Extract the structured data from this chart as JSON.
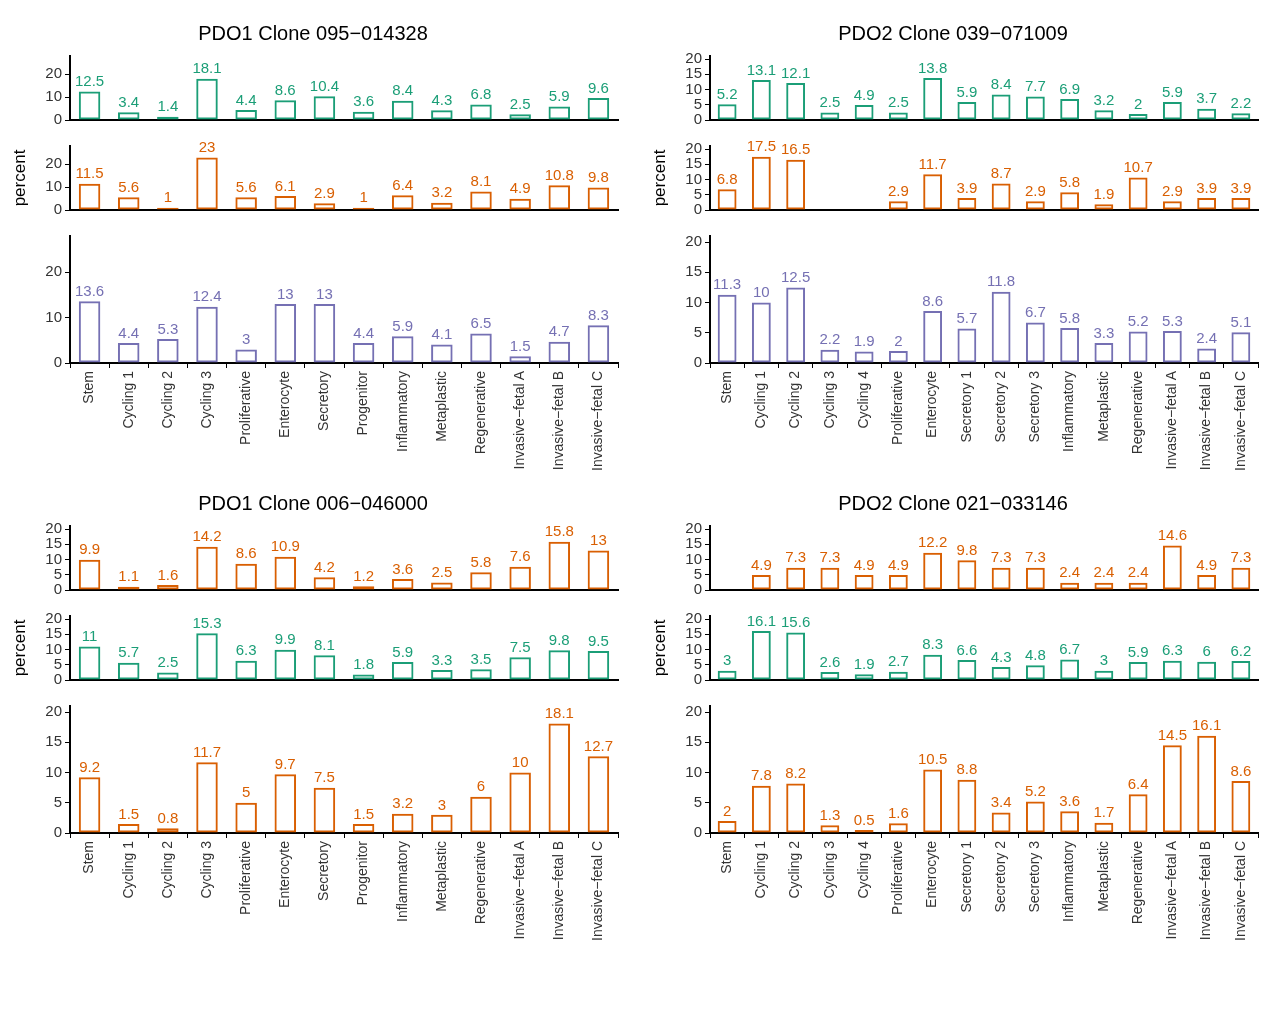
{
  "chart_data": [
    {
      "type": "bar",
      "title": "PDO1 Clone 095−014328",
      "categories": [
        null,
        null,
        null,
        null,
        null,
        null,
        null,
        null,
        null,
        null,
        null,
        null,
        null,
        null
      ],
      "series": [
        {
          "color": "#1b9e77",
          "values": [
            12.5,
            3.4,
            1.4,
            18.1,
            4.4,
            8.6,
            10.4,
            3.6,
            8.4,
            4.3,
            6.8,
            2.5,
            5.9,
            9.6
          ]
        }
      ],
      "ylim": [
        0,
        28
      ],
      "yticks": [
        0,
        10,
        20
      ],
      "data_labels": true,
      "tick_labels": "y",
      "grid": false
    },
    {
      "type": "bar",
      "ylabel": "percent",
      "categories": [
        null,
        null,
        null,
        null,
        null,
        null,
        null,
        null,
        null,
        null,
        null,
        null,
        null,
        null
      ],
      "series": [
        {
          "color": "#d95f02",
          "values": [
            11.5,
            5.6,
            1,
            23,
            5.6,
            6.1,
            2.9,
            1,
            6.4,
            3.2,
            8.1,
            4.9,
            10.8,
            9.8
          ]
        }
      ],
      "ylim": [
        0,
        28
      ],
      "yticks": [
        0,
        10,
        20
      ],
      "data_labels": true,
      "tick_labels": "y",
      "grid": false
    },
    {
      "type": "bar",
      "categories": [
        "Stem",
        "Cycling 1",
        "Cycling 2",
        "Cycling 3",
        "Proliferative",
        "Enterocyte",
        "Secretory",
        "Progenitor",
        "Inflammatory",
        "Metaplastic",
        "Regenerative",
        "Invasive−fetal A",
        "Invasive−fetal B",
        "Invasive−fetal C"
      ],
      "series": [
        {
          "color": "#7570b3",
          "values": [
            13.6,
            4.4,
            5.3,
            12.4,
            3,
            13,
            13,
            4.4,
            5.9,
            4.1,
            6.5,
            1.5,
            4.7,
            8.3
          ]
        }
      ],
      "ylim": [
        0,
        28
      ],
      "yticks": [
        0,
        10,
        20
      ],
      "data_labels": true,
      "grid": false
    },
    {
      "type": "bar",
      "title": "PDO2 Clone 039−071009",
      "categories": [
        null,
        null,
        null,
        null,
        null,
        null,
        null,
        null,
        null,
        null,
        null,
        null,
        null,
        null,
        null,
        null
      ],
      "series": [
        {
          "color": "#1b9e77",
          "values": [
            5.2,
            13.1,
            12.1,
            2.5,
            4.9,
            2.5,
            13.8,
            5.9,
            8.4,
            7.7,
            6.9,
            3.2,
            2,
            5.9,
            3.7,
            2.2
          ]
        }
      ],
      "ylim": [
        0,
        21
      ],
      "yticks": [
        0,
        5,
        10,
        15,
        20
      ],
      "data_labels": true,
      "tick_labels": "y",
      "grid": false
    },
    {
      "type": "bar",
      "ylabel": "percent",
      "categories": [
        null,
        null,
        null,
        null,
        null,
        null,
        null,
        null,
        null,
        null,
        null,
        null,
        null,
        null,
        null,
        null
      ],
      "series": [
        {
          "color": "#d95f02",
          "values": [
            6.8,
            17.5,
            16.5,
            null,
            null,
            2.9,
            11.7,
            3.9,
            8.7,
            2.9,
            5.8,
            1.9,
            10.7,
            2.9,
            3.9,
            3.9
          ]
        }
      ],
      "ylim": [
        0,
        21
      ],
      "yticks": [
        0,
        5,
        10,
        15,
        20
      ],
      "data_labels": true,
      "tick_labels": "y",
      "grid": false
    },
    {
      "type": "bar",
      "categories": [
        "Stem",
        "Cycling 1",
        "Cycling 2",
        "Cycling 3",
        "Cycling 4",
        "Proliferative",
        "Enterocyte",
        "Secretory 1",
        "Secretory 2",
        "Secretory 3",
        "Inflammatory",
        "Metaplastic",
        "Regenerative",
        "Invasive−fetal A",
        "Invasive−fetal B",
        "Invasive−fetal C"
      ],
      "series": [
        {
          "color": "#7570b3",
          "values": [
            11.3,
            10,
            12.5,
            2.2,
            1.9,
            2,
            8.6,
            5.7,
            11.8,
            6.7,
            5.8,
            3.3,
            5.2,
            5.3,
            2.4,
            5.1
          ]
        }
      ],
      "ylim": [
        0,
        21
      ],
      "yticks": [
        0,
        5,
        10,
        15,
        20
      ],
      "data_labels": true,
      "grid": false
    },
    {
      "type": "bar",
      "title": "PDO1 Clone 006−046000",
      "categories": [
        null,
        null,
        null,
        null,
        null,
        null,
        null,
        null,
        null,
        null,
        null,
        null,
        null,
        null
      ],
      "series": [
        {
          "color": "#d95f02",
          "values": [
            9.9,
            1.1,
            1.6,
            14.2,
            8.6,
            10.9,
            4.2,
            1.2,
            3.6,
            2.5,
            5.8,
            7.6,
            15.8,
            13
          ]
        }
      ],
      "ylim": [
        0,
        21
      ],
      "yticks": [
        0,
        5,
        10,
        15,
        20
      ],
      "data_labels": true,
      "tick_labels": "y",
      "grid": false
    },
    {
      "type": "bar",
      "ylabel": "percent",
      "categories": [
        null,
        null,
        null,
        null,
        null,
        null,
        null,
        null,
        null,
        null,
        null,
        null,
        null,
        null
      ],
      "series": [
        {
          "color": "#1b9e77",
          "values": [
            11,
            5.7,
            2.5,
            15.3,
            6.3,
            9.9,
            8.1,
            1.8,
            5.9,
            3.3,
            3.5,
            7.5,
            9.8,
            9.5
          ]
        }
      ],
      "ylim": [
        0,
        21
      ],
      "yticks": [
        0,
        5,
        10,
        15,
        20
      ],
      "data_labels": true,
      "tick_labels": "y",
      "grid": false
    },
    {
      "type": "bar",
      "categories": [
        "Stem",
        "Cycling 1",
        "Cycling 2",
        "Cycling 3",
        "Proliferative",
        "Enterocyte",
        "Secretory",
        "Progenitor",
        "Inflammatory",
        "Metaplastic",
        "Regenerative",
        "Invasive−fetal A",
        "Invasive−fetal B",
        "Invasive−fetal C"
      ],
      "series": [
        {
          "color": "#d95f02",
          "values": [
            9.2,
            1.5,
            0.8,
            11.7,
            5,
            9.7,
            7.5,
            1.5,
            3.2,
            3,
            6,
            10,
            18.1,
            12.7
          ]
        }
      ],
      "ylim": [
        0,
        21
      ],
      "yticks": [
        0,
        5,
        10,
        15,
        20
      ],
      "data_labels": true,
      "grid": false
    },
    {
      "type": "bar",
      "title": "PDO2 Clone 021−033146",
      "categories": [
        null,
        null,
        null,
        null,
        null,
        null,
        null,
        null,
        null,
        null,
        null,
        null,
        null,
        null,
        null,
        null
      ],
      "series": [
        {
          "color": "#d95f02",
          "values": [
            null,
            4.9,
            7.3,
            7.3,
            4.9,
            4.9,
            12.2,
            9.8,
            7.3,
            7.3,
            2.4,
            2.4,
            2.4,
            14.6,
            4.9,
            7.3
          ]
        }
      ],
      "ylim": [
        0,
        21
      ],
      "yticks": [
        0,
        5,
        10,
        15,
        20
      ],
      "data_labels": true,
      "tick_labels": "y",
      "grid": false
    },
    {
      "type": "bar",
      "ylabel": "percent",
      "categories": [
        null,
        null,
        null,
        null,
        null,
        null,
        null,
        null,
        null,
        null,
        null,
        null,
        null,
        null,
        null,
        null
      ],
      "series": [
        {
          "color": "#1b9e77",
          "values": [
            3,
            16.1,
            15.6,
            2.6,
            1.9,
            2.7,
            8.3,
            6.6,
            4.3,
            4.8,
            6.7,
            3,
            5.9,
            6.3,
            6,
            6.2
          ]
        }
      ],
      "ylim": [
        0,
        21
      ],
      "yticks": [
        0,
        5,
        10,
        15,
        20
      ],
      "data_labels": true,
      "tick_labels": "y",
      "grid": false
    },
    {
      "type": "bar",
      "categories": [
        "Stem",
        "Cycling 1",
        "Cycling 2",
        "Cycling 3",
        "Cycling 4",
        "Proliferative",
        "Enterocyte",
        "Secretory 1",
        "Secretory 2",
        "Secretory 3",
        "Inflammatory",
        "Metaplastic",
        "Regenerative",
        "Invasive−fetal A",
        "Invasive−fetal B",
        "Invasive−fetal C"
      ],
      "series": [
        {
          "color": "#d95f02",
          "values": [
            2,
            7.8,
            8.2,
            1.3,
            0.5,
            1.6,
            10.5,
            8.8,
            3.4,
            5.2,
            3.6,
            1.7,
            6.4,
            14.5,
            16.1,
            8.6
          ]
        }
      ],
      "ylim": [
        0,
        21
      ],
      "yticks": [
        0,
        5,
        10,
        15,
        20
      ],
      "data_labels": true,
      "grid": false
    }
  ]
}
